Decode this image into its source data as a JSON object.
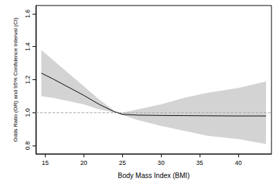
{
  "chart_data": {
    "type": "line",
    "x_label": "Body Mass Index (BMI)",
    "y_label": "Odds Ratio (OR) and 95% Confidence Interval (CI)",
    "x": [
      14.5,
      16,
      18,
      20,
      22,
      24,
      25,
      27,
      30,
      33,
      36,
      40,
      43.6
    ],
    "values": [
      1.24,
      1.205,
      1.155,
      1.105,
      1.05,
      1.005,
      0.99,
      0.985,
      0.983,
      0.982,
      0.981,
      0.98,
      0.98
    ],
    "ci_upper": [
      1.38,
      1.32,
      1.24,
      1.16,
      1.08,
      1.01,
      1.0,
      1.02,
      1.05,
      1.09,
      1.12,
      1.15,
      1.19
    ],
    "ci_lower": [
      1.1,
      1.09,
      1.07,
      1.05,
      1.02,
      1.0,
      0.985,
      0.955,
      0.92,
      0.89,
      0.86,
      0.84,
      0.81
    ],
    "color": "#000000",
    "reference_line": 1,
    "xlim": [
      13.8,
      44.3
    ],
    "xticks": [
      15,
      20,
      25,
      30,
      35,
      40
    ],
    "ylim": [
      0.75,
      1.65
    ],
    "yticks": [
      0.8,
      {
        "value": 1,
        "label": "1.0"
      },
      1.2,
      1.4,
      1.6
    ],
    "grid": false
  }
}
